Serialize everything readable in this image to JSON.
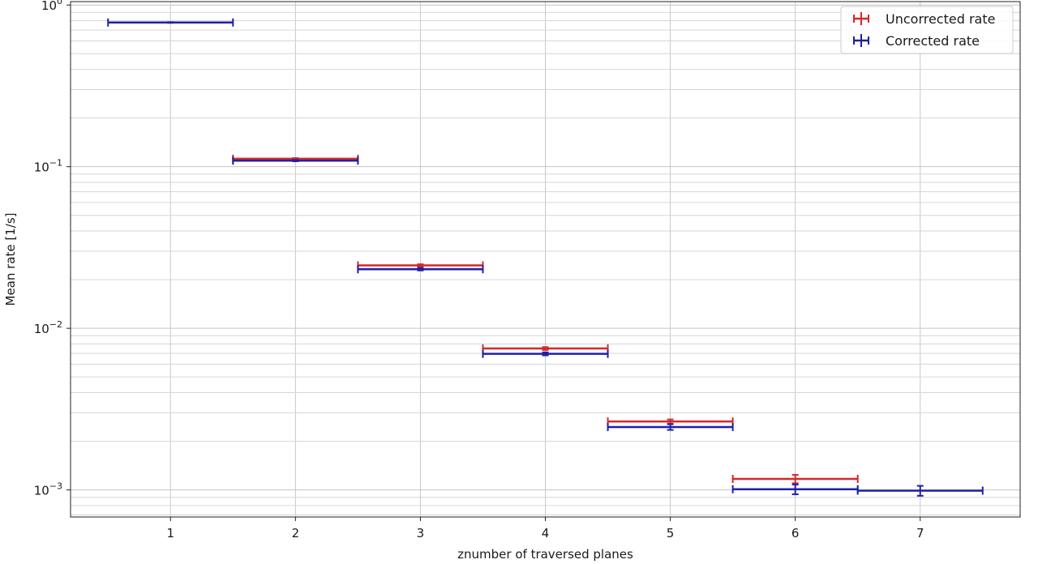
{
  "chart_data": {
    "type": "scatter",
    "title": "",
    "xlabel": "znumber of traversed planes",
    "ylabel": "Mean rate [1/s]",
    "yscale": "log",
    "xlim": [
      0.2,
      7.8
    ],
    "ylim": [
      0.00068,
      1.05
    ],
    "grid": true,
    "grid_minor_y": true,
    "legend_position": "top-right",
    "x_ticks": [
      {
        "value": 1,
        "label": "1"
      },
      {
        "value": 2,
        "label": "2"
      },
      {
        "value": 3,
        "label": "3"
      },
      {
        "value": 4,
        "label": "4"
      },
      {
        "value": 5,
        "label": "5"
      },
      {
        "value": 6,
        "label": "6"
      },
      {
        "value": 7,
        "label": "7"
      }
    ],
    "y_ticks": [
      {
        "value": 1,
        "base": "10",
        "exp": "0"
      },
      {
        "value": 0.1,
        "base": "10",
        "exp": "−1"
      },
      {
        "value": 0.01,
        "base": "10",
        "exp": "−2"
      },
      {
        "value": 0.001,
        "base": "10",
        "exp": "−3"
      }
    ],
    "series": [
      {
        "name": "Uncorrected rate",
        "color": "#d62728",
        "points": [
          {
            "x": 2,
            "y": 0.112,
            "xerr": 0.5,
            "yerr": 0.001
          },
          {
            "x": 3,
            "y": 0.0245,
            "xerr": 0.5,
            "yerr": 0.0004
          },
          {
            "x": 4,
            "y": 0.0075,
            "xerr": 0.5,
            "yerr": 0.00015
          },
          {
            "x": 5,
            "y": 0.00265,
            "xerr": 0.5,
            "yerr": 8e-05
          },
          {
            "x": 6,
            "y": 0.00117,
            "xerr": 0.5,
            "yerr": 7e-05
          }
        ]
      },
      {
        "name": "Corrected rate",
        "color": "#1f1fa8",
        "points": [
          {
            "x": 1,
            "y": 0.78,
            "xerr": 0.5,
            "yerr": 0.004
          },
          {
            "x": 2,
            "y": 0.109,
            "xerr": 0.5,
            "yerr": 0.001
          },
          {
            "x": 3,
            "y": 0.0232,
            "xerr": 0.5,
            "yerr": 0.0004
          },
          {
            "x": 4,
            "y": 0.00695,
            "xerr": 0.5,
            "yerr": 0.00015
          },
          {
            "x": 5,
            "y": 0.00245,
            "xerr": 0.5,
            "yerr": 0.0001
          },
          {
            "x": 6,
            "y": 0.00101,
            "xerr": 0.5,
            "yerr": 7e-05
          },
          {
            "x": 7,
            "y": 0.00099,
            "xerr": 0.5,
            "yerr": 7e-05
          }
        ]
      }
    ]
  }
}
